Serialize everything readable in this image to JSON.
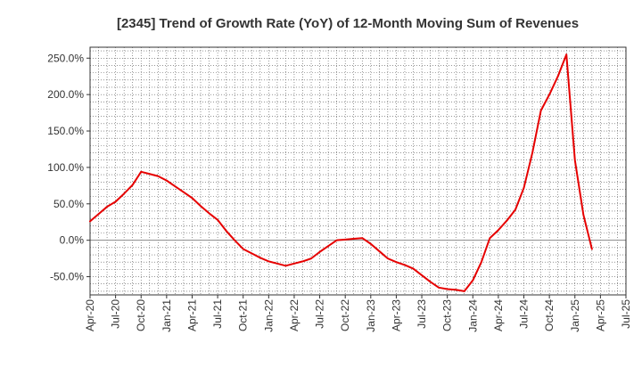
{
  "chart_data": {
    "type": "line",
    "title": "[2345]  Trend of Growth Rate (YoY) of 12-Month Moving Sum of Revenues",
    "xlabel": "",
    "ylabel": "",
    "ylim": [
      -75,
      265
    ],
    "y_ticks": [
      250,
      200,
      150,
      100,
      50,
      0,
      -50
    ],
    "y_tick_labels": [
      "250.0%",
      "200.0%",
      "150.0%",
      "100.0%",
      "50.0%",
      "0.0%",
      "-50.0%"
    ],
    "x_tick_labels": [
      "Apr-20",
      "Jul-20",
      "Oct-20",
      "Jan-21",
      "Apr-21",
      "Jul-21",
      "Oct-21",
      "Jan-22",
      "Apr-22",
      "Jul-22",
      "Oct-22",
      "Jan-23",
      "Apr-23",
      "Jul-23",
      "Oct-23",
      "Jan-24",
      "Apr-24",
      "Jul-24",
      "Oct-24",
      "Jan-25",
      "Apr-25",
      "Jul-25"
    ],
    "grid": true,
    "line_color": "#e60000",
    "series": [
      {
        "values": [
          26,
          36,
          46,
          53,
          64,
          76,
          94,
          91,
          88,
          82,
          74,
          66,
          58,
          47,
          37,
          28,
          13,
          0,
          -12,
          -18,
          -24,
          -29,
          -32,
          -35,
          -32,
          -29,
          -25,
          -16,
          -8,
          0,
          1,
          2,
          3,
          -5,
          -15,
          -25,
          -30,
          -34,
          -39,
          -48,
          -57,
          -65,
          -67,
          -68,
          -70,
          -55,
          -30,
          3,
          14,
          27,
          42,
          72,
          120,
          178,
          200,
          225,
          255,
          110,
          35,
          -12
        ]
      }
    ]
  }
}
